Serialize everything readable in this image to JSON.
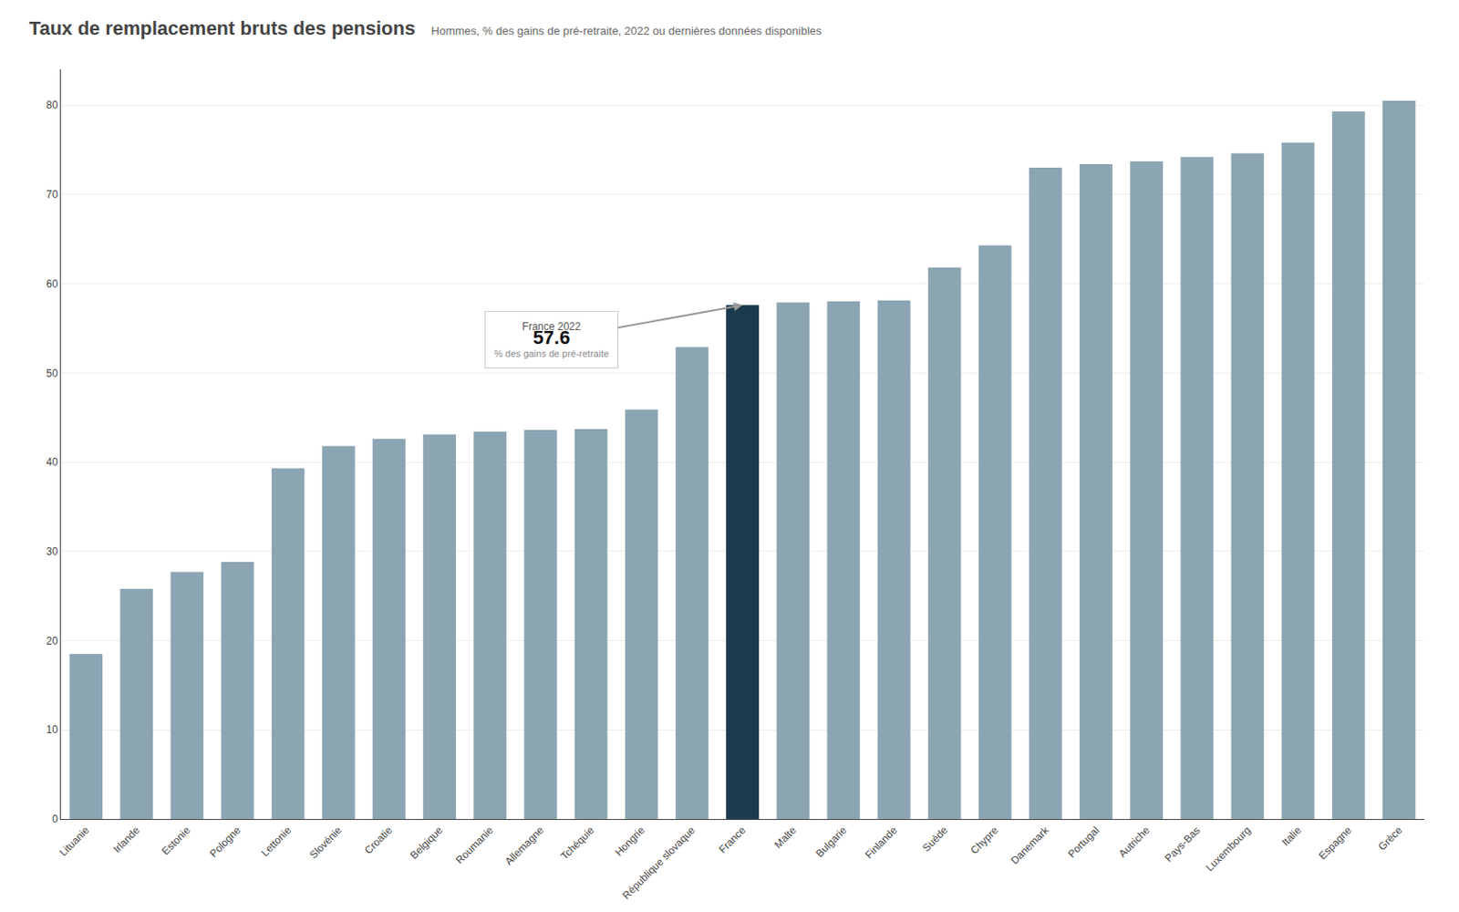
{
  "chart_data": {
    "type": "bar",
    "title": "Taux de remplacement bruts des pensions",
    "subtitle": "Hommes, % des gains de pré-retraite, 2022 ou dernières données disponibles",
    "categories": [
      "Lituanie",
      "Irlande",
      "Estonie",
      "Pologne",
      "Lettonie",
      "Slovénie",
      "Croatie",
      "Belgique",
      "Roumanie",
      "Allemagne",
      "Tchéquie",
      "Hongrie",
      "République slovaque",
      "France",
      "Malte",
      "Bulgarie",
      "Finlande",
      "Suède",
      "Chypre",
      "Danemark",
      "Portugal",
      "Autriche",
      "Pays-Bas",
      "Luxembourg",
      "Italie",
      "Espagne",
      "Grèce"
    ],
    "values": [
      18.5,
      25.8,
      27.7,
      28.8,
      39.3,
      41.8,
      42.6,
      43.1,
      43.4,
      43.6,
      43.7,
      45.9,
      52.9,
      57.6,
      57.9,
      58.0,
      58.1,
      61.8,
      64.3,
      73.0,
      73.4,
      73.7,
      74.2,
      74.6,
      75.8,
      79.3,
      80.5
    ],
    "colors": [
      "#8ca5b3",
      "#8ca5b3",
      "#8ca5b3",
      "#8ca5b3",
      "#8ca5b3",
      "#8ca5b3",
      "#8ca5b3",
      "#8ca5b3",
      "#8ca5b3",
      "#8ca5b3",
      "#8ca5b3",
      "#8ca5b3",
      "#8ca5b3",
      "#1c3a4e",
      "#8ca5b3",
      "#8ca5b3",
      "#8ca5b3",
      "#8ca5b3",
      "#8ca5b3",
      "#8ca5b3",
      "#8ca5b3",
      "#8ca5b3",
      "#8ca5b3",
      "#8ca5b3",
      "#8ca5b3",
      "#8ca5b3",
      "#8ca5b3"
    ],
    "ylim": [
      0,
      84
    ],
    "yticks": [
      0,
      10,
      20,
      30,
      40,
      50,
      60,
      70,
      80
    ],
    "grid": true,
    "annotations": [
      {
        "x": "France",
        "text": [
          "France 2022",
          "57.6",
          "% des gains de pré-retraite"
        ]
      }
    ]
  }
}
